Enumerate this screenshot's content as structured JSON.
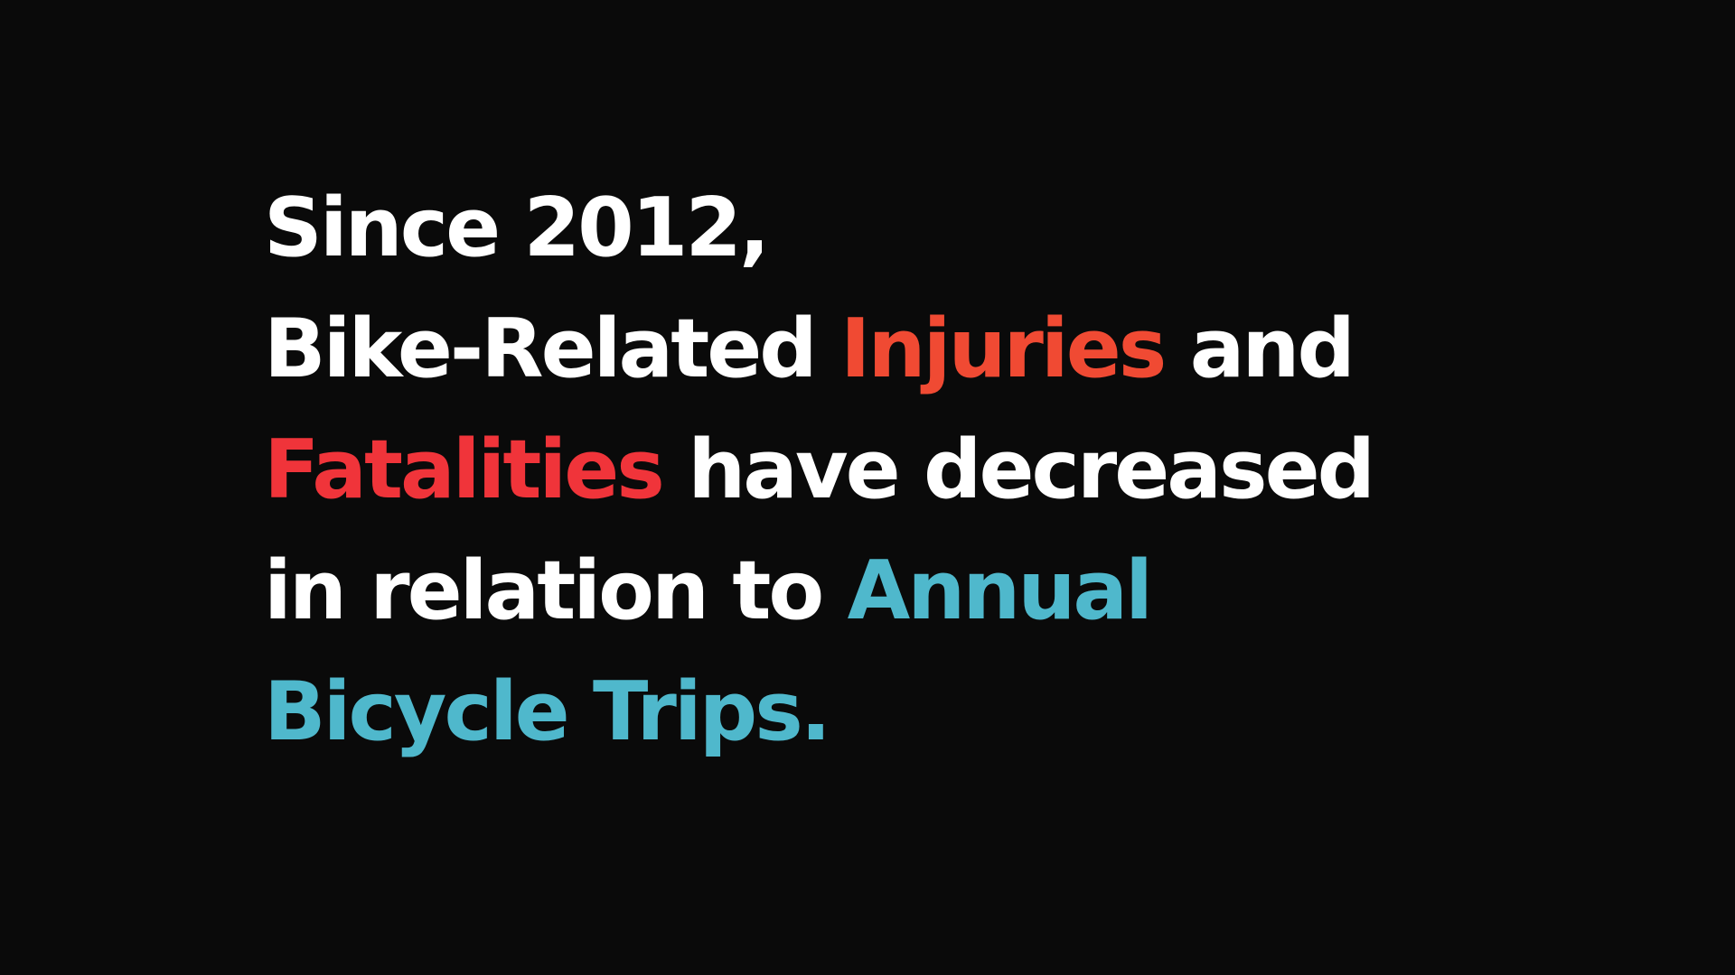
{
  "colors": {
    "background": "#0a0a0a",
    "text": "#ffffff",
    "injuries": "#f04a33",
    "fatalities": "#f0343a",
    "trips": "#4fb8cc"
  },
  "statement": {
    "line1": {
      "a": "Since 2012,"
    },
    "line2": {
      "a": "Bike-Related ",
      "b": "Injuries",
      "c": " and"
    },
    "line3": {
      "a": "Fatalities",
      "b": " have decreased"
    },
    "line4": {
      "a": "in relation to ",
      "b": "Annual"
    },
    "line5": {
      "a": "Bicycle Trips."
    }
  }
}
